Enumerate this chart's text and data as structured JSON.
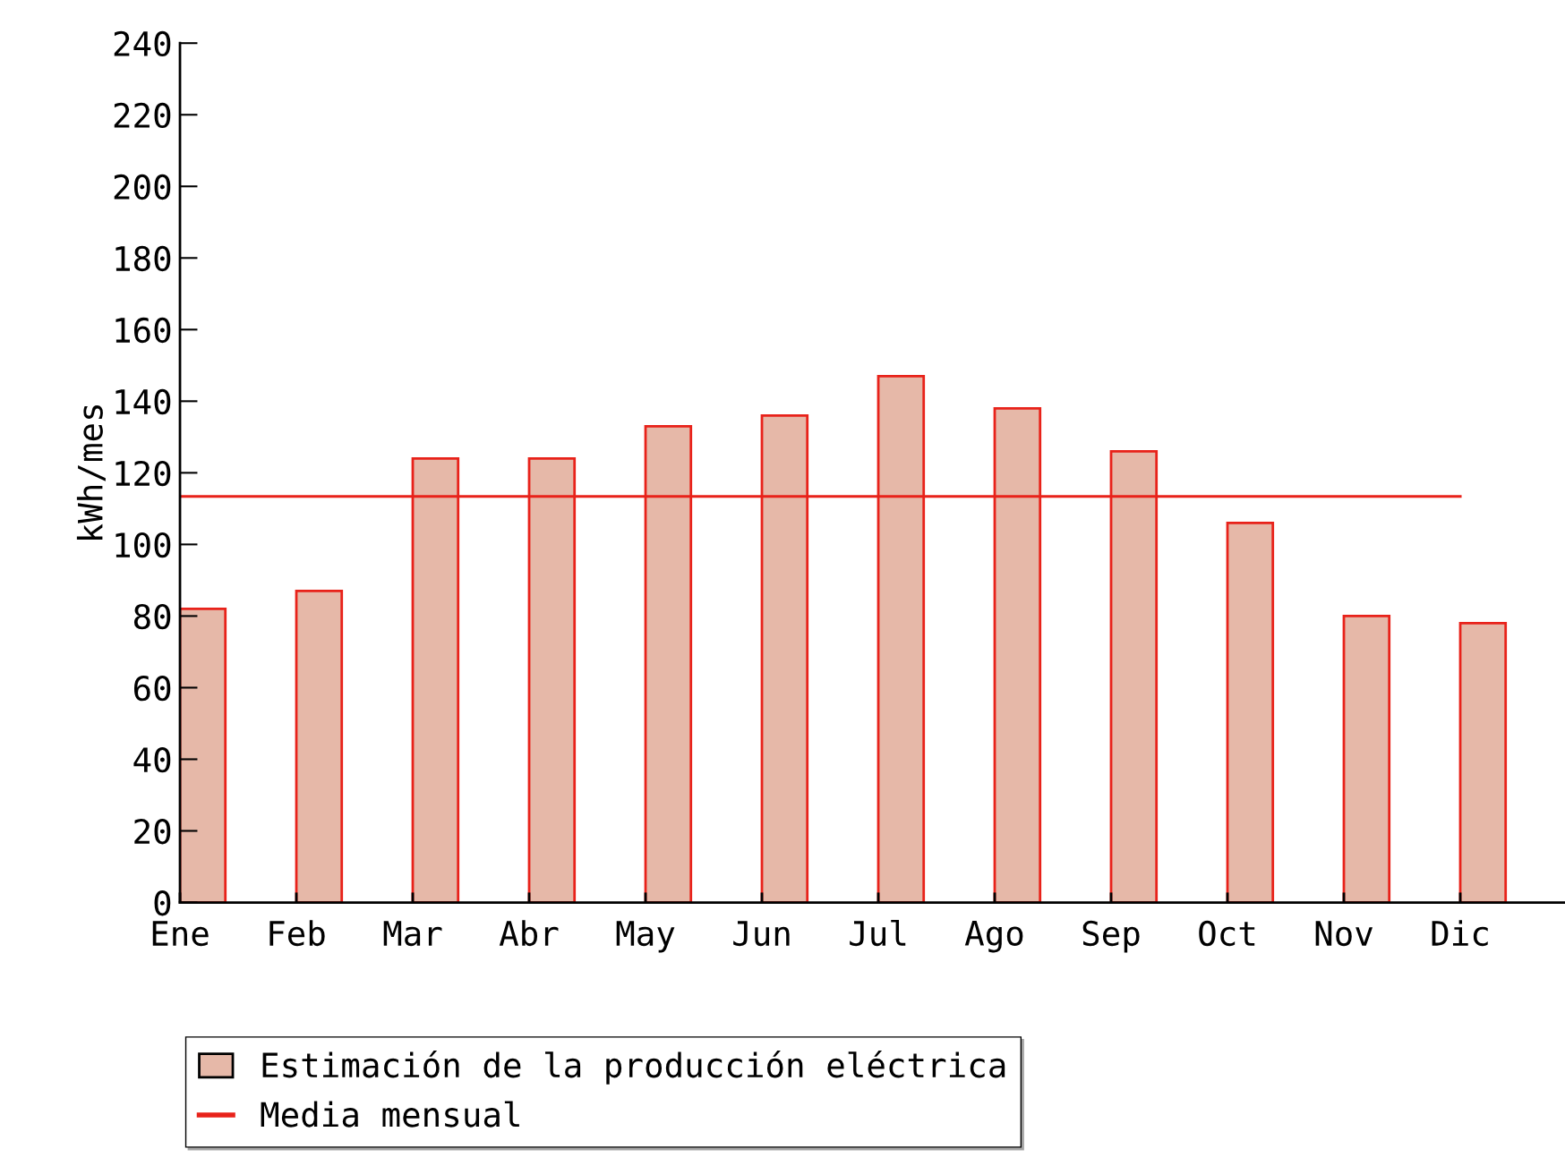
{
  "chart_data": {
    "type": "bar",
    "ylabel": "kWh/mes",
    "categories": [
      "Ene",
      "Feb",
      "Mar",
      "Abr",
      "May",
      "Jun",
      "Jul",
      "Ago",
      "Sep",
      "Oct",
      "Nov",
      "Dic"
    ],
    "series": [
      {
        "name": "Estimación de la producción eléctrica",
        "color": "#e6b8a8",
        "values": [
          82,
          87,
          124,
          124,
          133,
          136,
          147,
          138,
          126,
          106,
          80,
          78
        ]
      }
    ],
    "ref_lines": [
      {
        "axis": "y",
        "value": 113.4,
        "label": "Media mensual",
        "color": "#e8221a",
        "line_style": "solid"
      }
    ],
    "ylim": [
      0,
      240
    ],
    "yticks": [
      0,
      20,
      40,
      60,
      80,
      100,
      120,
      140,
      160,
      180,
      200,
      220,
      240
    ],
    "grid": false,
    "legend": "bottom left"
  }
}
